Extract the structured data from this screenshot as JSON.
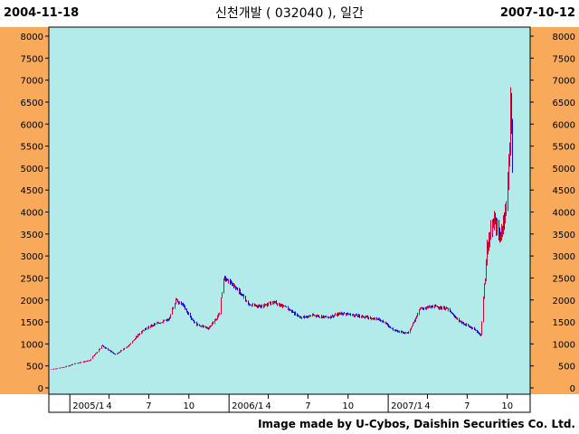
{
  "header": {
    "start_date": "2004-11-18",
    "end_date": "2007-10-12",
    "title": "신천개발 ( 032040 ), 일간"
  },
  "footer": {
    "credit": "Image made by U-Cybos, Daishin Securities Co. Ltd."
  },
  "colors": {
    "side_panel": "#f9a95a",
    "plot_bg": "#b3ebeb",
    "up_candle": "#d9003a",
    "down_candle": "#1010d0"
  },
  "chart_data": {
    "type": "line",
    "style": "daily candlestick (high-low bars)",
    "ylim": [
      0,
      8000
    ],
    "y_ticks": [
      0,
      500,
      1000,
      1500,
      2000,
      2500,
      3000,
      3500,
      4000,
      4500,
      5000,
      5500,
      6000,
      6500,
      7000,
      7500,
      8000
    ],
    "x_tick_labels": [
      "2005/1",
      "4",
      "7",
      "10",
      "2006/1",
      "4",
      "7",
      "10",
      "2007/1",
      "4",
      "7",
      "10"
    ],
    "x_tick_dates": [
      "2005-01-01",
      "2005-04-01",
      "2005-07-01",
      "2005-10-01",
      "2006-01-01",
      "2006-04-01",
      "2006-07-01",
      "2006-10-01",
      "2007-01-01",
      "2007-04-01",
      "2007-07-01",
      "2007-10-01"
    ],
    "grid": false,
    "series": [
      {
        "x": [
          "2004-11-18",
          "2004-12-15",
          "2005-01-15",
          "2005-02-15",
          "2005-03-15",
          "2005-04-15",
          "2005-05-15",
          "2005-06-15",
          "2005-07-15",
          "2005-08-15",
          "2005-09-01",
          "2005-09-15",
          "2005-10-15",
          "2005-11-15",
          "2005-12-10",
          "2005-12-20",
          "2006-01-15",
          "2006-02-15",
          "2006-03-15",
          "2006-04-15",
          "2006-05-15",
          "2006-06-15",
          "2006-07-15",
          "2006-08-15",
          "2006-09-15",
          "2006-10-15",
          "2006-11-15",
          "2006-12-15",
          "2007-01-15",
          "2007-02-15",
          "2007-03-15",
          "2007-04-15",
          "2007-05-15",
          "2007-06-15",
          "2007-07-15",
          "2007-08-01",
          "2007-08-15",
          "2007-09-01",
          "2007-09-15",
          "2007-10-01",
          "2007-10-08",
          "2007-10-12"
        ],
        "y": [
          420,
          460,
          560,
          620,
          960,
          760,
          960,
          1300,
          1450,
          1550,
          2000,
          1900,
          1450,
          1350,
          1700,
          2500,
          2300,
          1900,
          1850,
          1950,
          1800,
          1600,
          1650,
          1600,
          1700,
          1650,
          1600,
          1550,
          1300,
          1250,
          1800,
          1850,
          1800,
          1500,
          1350,
          1200,
          3200,
          3800,
          3400,
          4200,
          6600,
          5200
        ]
      }
    ]
  }
}
